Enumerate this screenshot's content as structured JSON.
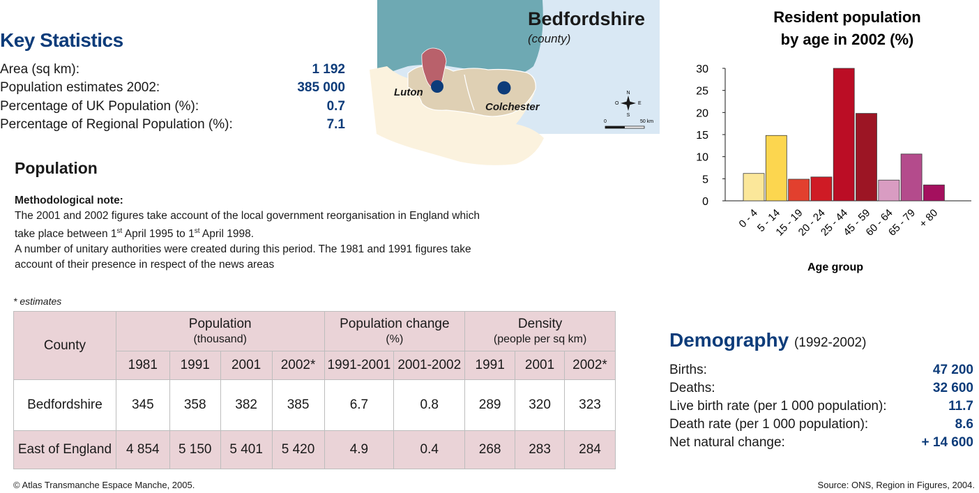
{
  "key_statistics": {
    "title": "Key Statistics",
    "rows": [
      {
        "label": "Area (sq km):",
        "value": "1 192"
      },
      {
        "label": "Population estimates 2002:",
        "value": "385 000"
      },
      {
        "label": "Percentage of UK Population (%):",
        "value": "0.7"
      },
      {
        "label": "Percentage of Regional Population (%):",
        "value": "7.1"
      }
    ]
  },
  "map": {
    "title": "Bedfordshire",
    "subtitle": "(county)",
    "places": [
      "Luton",
      "Colchester"
    ],
    "compass": {
      "n": "N",
      "s": "S",
      "e": "E",
      "o": "O"
    },
    "scale": {
      "start": "0",
      "end": "50 km"
    },
    "colors": {
      "sea": "#6ea9b3",
      "land": "#dfd0b4",
      "light_land": "#fbf2de",
      "county": "#b9616b",
      "water_light": "#d9e8f4",
      "dot": "#0d3c7a"
    }
  },
  "population": {
    "title": "Population",
    "note_heading": "Methodological note:",
    "note_line1": "The 2001 and 2002 figures take account of the local government reorganisation in England which",
    "note_line2_a": "take place between 1",
    "note_line2_sup1": "st",
    "note_line2_b": " April 1995 to 1",
    "note_line2_sup2": "st",
    "note_line2_c": " April 1998.",
    "note_line3": "A number of unitary authorities were created during this period. The 1981 and 1991 figures take",
    "note_line4": "account of their presence in respect of the news areas",
    "estimates_note": "* estimates"
  },
  "table": {
    "county_header": "County",
    "group_headers": [
      {
        "title": "Population",
        "sub": "(thousand)"
      },
      {
        "title": "Population change",
        "sub": "(%)"
      },
      {
        "title": "Density",
        "sub": "(people per sq km)"
      }
    ],
    "years": [
      "1981",
      "1991",
      "2001",
      "2002*",
      "1991-2001",
      "2001-2002",
      "1991",
      "2001",
      "2002*"
    ],
    "rows": [
      {
        "county": "Bedfordshire",
        "values": [
          "345",
          "358",
          "382",
          "385",
          "6.7",
          "0.8",
          "289",
          "320",
          "323"
        ]
      },
      {
        "county": "East of England",
        "values": [
          "4 854",
          "5 150",
          "5 401",
          "5 420",
          "4.9",
          "0.4",
          "268",
          "283",
          "284"
        ]
      }
    ]
  },
  "chart_data": {
    "type": "bar",
    "title": "Resident population by age in 2002 (%)",
    "title_line1": "Resident population",
    "title_line2": "by age in 2002 (%)",
    "xlabel": "Age group",
    "ylabel": "",
    "ylim": [
      0,
      30
    ],
    "yticks": [
      0,
      5,
      10,
      15,
      20,
      25,
      30
    ],
    "categories": [
      "0 - 4",
      "5 - 14",
      "15 - 19",
      "20 - 24",
      "25 - 44",
      "45 - 59",
      "60 - 64",
      "65 - 79",
      "+ 80"
    ],
    "values": [
      6.2,
      14.8,
      4.9,
      5.4,
      30.0,
      19.8,
      4.7,
      10.6,
      3.6
    ],
    "colors": [
      "#fbe79a",
      "#fcd64f",
      "#e2402e",
      "#cf1b25",
      "#bb0d25",
      "#9c1524",
      "#d99cc2",
      "#b44b8c",
      "#a4105e"
    ],
    "grid": false,
    "legend": "none"
  },
  "demography": {
    "title": "Demography",
    "period": "(1992-2002)",
    "rows": [
      {
        "label": "Births:",
        "value": "47 200"
      },
      {
        "label": "Deaths:",
        "value": "32 600"
      },
      {
        "label": "Live birth rate (per 1 000 population):",
        "value": "11.7"
      },
      {
        "label": "Death rate (per 1 000 population):",
        "value": "8.6"
      },
      {
        "label": "Net natural change:",
        "value": "+ 14 600"
      }
    ]
  },
  "footer": {
    "copyright": "© Atlas Transmanche Espace Manche, 2005.",
    "source": "Source: ONS, Region in Figures, 2004."
  }
}
